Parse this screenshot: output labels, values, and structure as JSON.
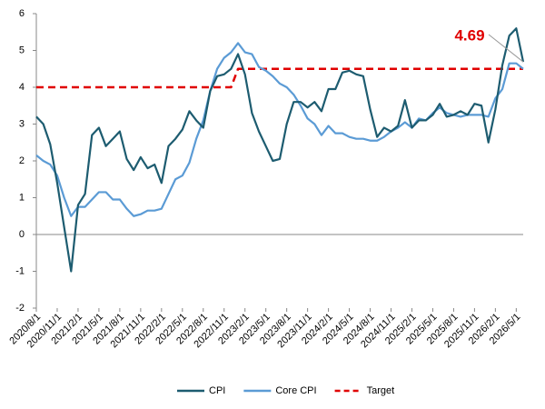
{
  "chart_data": {
    "type": "line",
    "categories": [
      "2020/8/1",
      null,
      null,
      "2020/11/1",
      null,
      null,
      "2021/2/1",
      null,
      null,
      "2021/5/1",
      null,
      null,
      "2021/8/1",
      null,
      null,
      "2021/11/1",
      null,
      null,
      "2022/2/1",
      null,
      null,
      "2022/5/1",
      null,
      null,
      "2022/8/1",
      null,
      null,
      "2022/11/1",
      null,
      null,
      "2023/2/1",
      null,
      null,
      "2023/5/1",
      null,
      null,
      "2023/8/1",
      null,
      null,
      "2023/11/1",
      null,
      null,
      "2024/2/1",
      null,
      null,
      "2024/5/1",
      null,
      null,
      "2024/8/1",
      null,
      null,
      "2024/11/1",
      null,
      null,
      "2025/2/1",
      null,
      null,
      "2025/5/1",
      null,
      null,
      "2025/8/1",
      null,
      null,
      "2025/11/1",
      null,
      null,
      "2026/2/1",
      null,
      null,
      "2026/5/1",
      null
    ],
    "series": [
      {
        "name": "CPI",
        "color": "#1d5c70",
        "dashed": false,
        "values": [
          3.2,
          3.0,
          2.45,
          1.4,
          0.2,
          -1.0,
          0.8,
          1.1,
          2.7,
          2.9,
          2.4,
          2.6,
          2.8,
          2.05,
          1.75,
          2.1,
          1.8,
          1.9,
          1.4,
          2.4,
          2.6,
          2.85,
          3.35,
          3.1,
          2.9,
          3.9,
          4.3,
          4.35,
          4.5,
          4.9,
          4.35,
          3.3,
          2.8,
          2.4,
          2.0,
          2.05,
          3.0,
          3.6,
          3.6,
          3.45,
          3.6,
          3.35,
          3.95,
          3.95,
          4.4,
          4.45,
          4.35,
          4.3,
          3.4,
          2.65,
          2.9,
          2.8,
          2.95,
          3.65,
          2.9,
          3.1,
          3.1,
          3.25,
          3.55,
          3.2,
          3.25,
          3.35,
          3.25,
          3.55,
          3.5,
          2.5,
          3.4,
          4.6,
          5.4,
          5.6,
          4.69
        ]
      },
      {
        "name": "Core CPI",
        "color": "#5b9bd5",
        "dashed": false,
        "values": [
          2.15,
          2.0,
          1.9,
          1.6,
          1.0,
          0.5,
          0.75,
          0.75,
          0.95,
          1.15,
          1.15,
          0.95,
          0.95,
          0.7,
          0.5,
          0.55,
          0.65,
          0.65,
          0.7,
          1.1,
          1.5,
          1.6,
          1.95,
          2.6,
          3.1,
          3.9,
          4.5,
          4.8,
          4.95,
          5.2,
          4.95,
          4.9,
          4.55,
          4.45,
          4.3,
          4.1,
          4.0,
          3.8,
          3.5,
          3.15,
          3.0,
          2.7,
          2.95,
          2.75,
          2.75,
          2.65,
          2.6,
          2.6,
          2.55,
          2.55,
          2.65,
          2.8,
          2.9,
          3.05,
          2.9,
          3.15,
          3.1,
          3.3,
          3.45,
          3.3,
          3.25,
          3.2,
          3.25,
          3.25,
          3.25,
          3.2,
          3.7,
          3.95,
          4.65,
          4.65,
          4.5
        ]
      },
      {
        "name": "Target",
        "color": "#e00000",
        "dashed": true,
        "values": [
          4,
          4,
          4,
          4,
          4,
          4,
          4,
          4,
          4,
          4,
          4,
          4,
          4,
          4,
          4,
          4,
          4,
          4,
          4,
          4,
          4,
          4,
          4,
          4,
          4,
          4,
          4,
          4,
          4,
          4.5,
          4.5,
          4.5,
          4.5,
          4.5,
          4.5,
          4.5,
          4.5,
          4.5,
          4.5,
          4.5,
          4.5,
          4.5,
          4.5,
          4.5,
          4.5,
          4.5,
          4.5,
          4.5,
          4.5,
          4.5,
          4.5,
          4.5,
          4.5,
          4.5,
          4.5,
          4.5,
          4.5,
          4.5,
          4.5,
          4.5,
          4.5,
          4.5,
          4.5,
          4.5,
          4.5,
          4.5,
          4.5,
          4.5,
          4.5,
          4.5,
          4.5
        ]
      }
    ],
    "annotations": [
      {
        "text": "4.69",
        "color": "#e00000"
      }
    ],
    "ylim": [
      -2,
      6
    ],
    "yticks": [
      -2,
      -1,
      0,
      1,
      2,
      3,
      4,
      5,
      6
    ],
    "grid": false,
    "legend": "bottom"
  }
}
